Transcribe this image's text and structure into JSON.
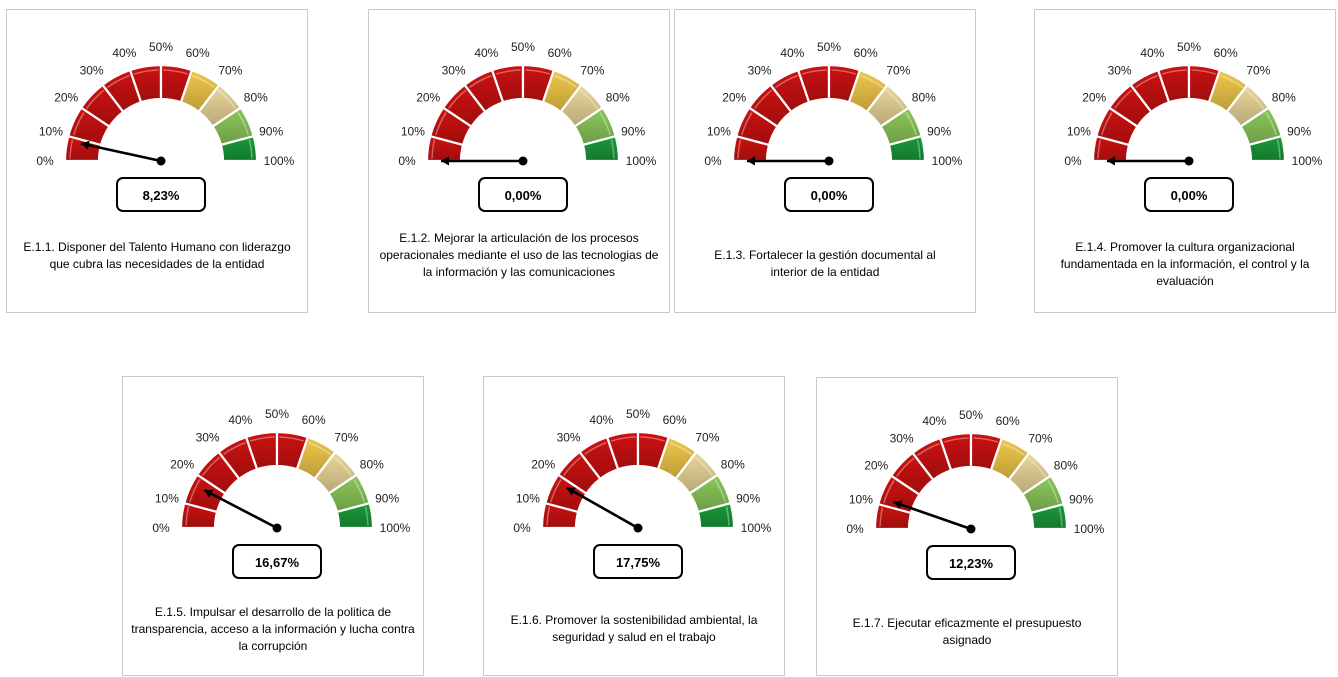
{
  "chart_data": [
    {
      "type": "gauge",
      "value": 8.23,
      "value_label": "8,23%",
      "caption": "E.1.1. Disponer del Talento Humano con liderazgo que cubra las necesidades de la entidad",
      "range": [
        0,
        100
      ]
    },
    {
      "type": "gauge",
      "value": 0.0,
      "value_label": "0,00%",
      "caption": "E.1.2. Mejorar la articulación de los procesos operacionales mediante el uso de las tecnologias de la información y las comunicaciones",
      "range": [
        0,
        100
      ]
    },
    {
      "type": "gauge",
      "value": 0.0,
      "value_label": "0,00%",
      "caption": "E.1.3. Fortalecer la gestión documental al interior de la entidad",
      "range": [
        0,
        100
      ]
    },
    {
      "type": "gauge",
      "value": 0.0,
      "value_label": "0,00%",
      "caption": "E.1.4. Promover la cultura organizacional fundamentada en la información, el control y la evaluación",
      "range": [
        0,
        100
      ]
    },
    {
      "type": "gauge",
      "value": 16.67,
      "value_label": "16,67%",
      "caption": "E.1.5. Impulsar el desarrollo de la politica de transparencia, acceso a la información y lucha contra la corrupción",
      "range": [
        0,
        100
      ]
    },
    {
      "type": "gauge",
      "value": 17.75,
      "value_label": "17,75%",
      "caption": "E.1.6. Promover la sostenibilidad ambiental, la seguridad y salud en el trabajo",
      "range": [
        0,
        100
      ]
    },
    {
      "type": "gauge",
      "value": 12.23,
      "value_label": "12,23%",
      "caption": "E.1.7. Ejecutar eficazmente el presupuesto asignado",
      "range": [
        0,
        100
      ]
    }
  ],
  "tick_labels": [
    "0%",
    "10%",
    "20%",
    "30%",
    "40%",
    "50%",
    "60%",
    "70%",
    "80%",
    "90%",
    "100%"
  ],
  "segment_colors": [
    "#cc1111",
    "#cc1111",
    "#cc1111",
    "#cc1111",
    "#cc1111",
    "#cc1111",
    "#f0c84a",
    "#ead79a",
    "#8cc85a",
    "#1a9a3a"
  ]
}
